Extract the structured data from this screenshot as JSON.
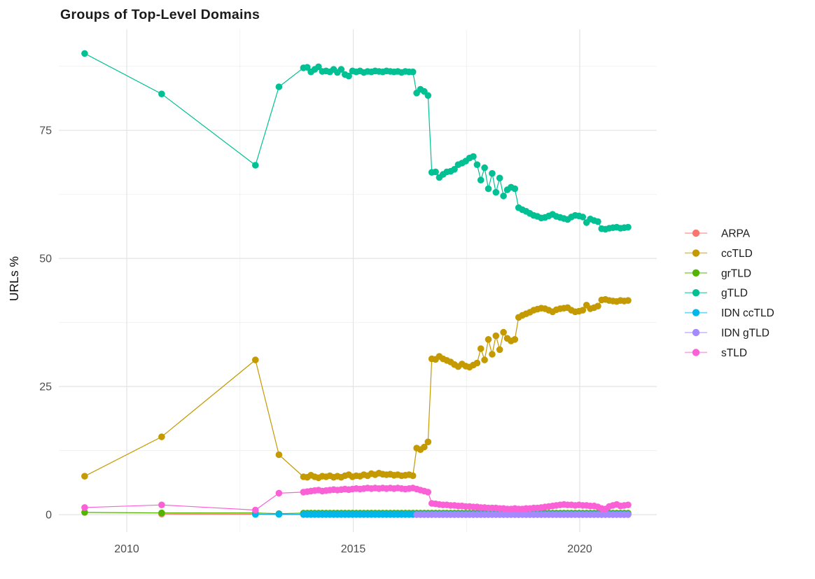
{
  "chart_data": {
    "type": "scatter",
    "title": "Groups of Top-Level Domains",
    "xlabel": "",
    "ylabel": "URLs %",
    "grid": true,
    "legend_position": "right",
    "x_range": [
      2008.5,
      2021.7
    ],
    "y_range": [
      -3.4,
      94.7
    ],
    "x_ticks": [
      2010,
      2015,
      2020
    ],
    "x_minor_ticks": [
      2012.5,
      2017.5
    ],
    "y_ticks": [
      0,
      25,
      50,
      75
    ],
    "y_minor_ticks": [
      12.5,
      37.5,
      62.5,
      87.5
    ],
    "colors": {
      "grid_major": "#e3e3e3",
      "grid_minor": "#f0f0f0",
      "tick_label": "#4d4d4d",
      "title": "#1a1a1a",
      "axis_title": "#0d0d0d",
      "legend_label": "#1a1a1a"
    },
    "series": [
      {
        "name": "ARPA",
        "color": "#F8766D",
        "early": [
          [
            2010.77,
            0.12
          ],
          [
            2012.84,
            0.1
          ]
        ],
        "flat": {
          "x_start": 2013.9,
          "x_step": 0.08333,
          "count": 87,
          "value": 0.03
        }
      },
      {
        "name": "ccTLD",
        "color": "#C49A00",
        "early": [
          [
            2009.07,
            7.5
          ],
          [
            2010.77,
            15.2
          ],
          [
            2012.84,
            30.2
          ],
          [
            2013.36,
            11.7
          ]
        ],
        "monthly": {
          "x_start": 2013.9,
          "x_step": 0.08333,
          "values": [
            7.4,
            7.3,
            7.7,
            7.4,
            7.2,
            7.5,
            7.4,
            7.6,
            7.3,
            7.5,
            7.3,
            7.6,
            7.8,
            7.4,
            7.6,
            7.5,
            7.8,
            7.6,
            8.0,
            7.8,
            8.1,
            7.9,
            7.8,
            7.9,
            7.7,
            7.8,
            7.6,
            7.7,
            7.8,
            7.6,
            13.0,
            12.7,
            13.2,
            14.2,
            30.4,
            30.3,
            30.9,
            30.4,
            30.1,
            29.8,
            29.3,
            28.9,
            29.4,
            29.0,
            28.8,
            29.2,
            29.6,
            32.4,
            30.2,
            34.2,
            31.3,
            34.9,
            32.2,
            35.6,
            34.4,
            33.9,
            34.2,
            38.5,
            38.9,
            39.2,
            39.5,
            39.9,
            40.1,
            40.3,
            40.2,
            39.9,
            39.6,
            40.0,
            40.2,
            40.3,
            40.4,
            39.9,
            39.6,
            39.7,
            39.9,
            40.9,
            40.2,
            40.4,
            40.7,
            41.9,
            42.0,
            41.8,
            41.7,
            41.6,
            41.8,
            41.7,
            41.8
          ]
        }
      },
      {
        "name": "grTLD",
        "color": "#53B400",
        "early": [
          [
            2009.07,
            0.45
          ],
          [
            2010.77,
            0.35
          ],
          [
            2012.84,
            0.35
          ],
          [
            2013.36,
            0.2
          ]
        ],
        "flat": {
          "x_start": 2013.9,
          "x_step": 0.08333,
          "count": 87,
          "value": 0.3
        }
      },
      {
        "name": "gTLD",
        "color": "#00C094",
        "early": [
          [
            2009.07,
            90.0
          ],
          [
            2010.77,
            82.1
          ],
          [
            2012.84,
            68.2
          ],
          [
            2013.36,
            83.5
          ]
        ],
        "monthly": {
          "x_start": 2013.9,
          "x_step": 0.08333,
          "values": [
            87.2,
            87.3,
            86.4,
            86.9,
            87.4,
            86.5,
            86.6,
            86.4,
            86.9,
            86.3,
            86.9,
            85.9,
            85.6,
            86.6,
            86.4,
            86.6,
            86.3,
            86.5,
            86.4,
            86.6,
            86.5,
            86.4,
            86.6,
            86.5,
            86.4,
            86.5,
            86.3,
            86.5,
            86.4,
            86.4,
            82.3,
            83.0,
            82.6,
            81.8,
            66.8,
            66.9,
            65.8,
            66.4,
            66.9,
            67.0,
            67.4,
            68.3,
            68.6,
            69.0,
            69.6,
            69.9,
            68.3,
            65.3,
            67.7,
            63.6,
            66.6,
            62.9,
            65.7,
            62.2,
            63.4,
            63.9,
            63.6,
            59.9,
            59.5,
            59.2,
            58.8,
            58.4,
            58.2,
            57.9,
            58.0,
            58.3,
            58.6,
            58.2,
            58.0,
            57.8,
            57.6,
            58.1,
            58.4,
            58.3,
            58.1,
            57.0,
            57.7,
            57.4,
            57.2,
            55.8,
            55.7,
            55.9,
            56.0,
            56.1,
            55.9,
            56.0,
            56.1
          ]
        }
      },
      {
        "name": "IDN ccTLD",
        "color": "#00B6EB",
        "early": [
          [
            2012.84,
            0.06
          ],
          [
            2013.36,
            0.05
          ]
        ],
        "flat": {
          "x_start": 2013.9,
          "x_step": 0.08333,
          "count": 87,
          "value": 0.05
        }
      },
      {
        "name": "IDN gTLD",
        "color": "#A58AFF",
        "flat": {
          "x_start": 2016.4,
          "x_step": 0.08333,
          "count": 57,
          "value": 0.02
        }
      },
      {
        "name": "sTLD",
        "color": "#FB61D7",
        "early": [
          [
            2009.07,
            1.4
          ],
          [
            2010.77,
            1.9
          ],
          [
            2012.84,
            0.9
          ],
          [
            2013.36,
            4.2
          ]
        ],
        "monthly": {
          "x_start": 2013.9,
          "x_step": 0.08333,
          "values": [
            4.4,
            4.5,
            4.6,
            4.7,
            4.8,
            4.6,
            4.7,
            4.8,
            4.9,
            4.8,
            4.9,
            5.0,
            4.9,
            5.0,
            5.1,
            5.0,
            5.1,
            5.2,
            5.1,
            5.2,
            5.1,
            5.2,
            5.1,
            5.2,
            5.1,
            5.2,
            5.1,
            5.0,
            5.1,
            5.2,
            5.0,
            4.8,
            4.6,
            4.4,
            2.2,
            2.1,
            2.0,
            1.9,
            1.9,
            1.8,
            1.8,
            1.7,
            1.7,
            1.6,
            1.6,
            1.5,
            1.5,
            1.4,
            1.4,
            1.3,
            1.3,
            1.3,
            1.2,
            1.2,
            1.1,
            1.1,
            1.2,
            1.1,
            1.1,
            1.2,
            1.2,
            1.3,
            1.3,
            1.4,
            1.5,
            1.6,
            1.7,
            1.8,
            1.9,
            2.0,
            1.9,
            1.9,
            1.8,
            1.9,
            1.8,
            1.8,
            1.7,
            1.7,
            1.5,
            1.2,
            1.1,
            1.6,
            1.8,
            2.0,
            1.7,
            1.8,
            1.9
          ]
        }
      }
    ],
    "legend_items": [
      "ARPA",
      "ccTLD",
      "grTLD",
      "gTLD",
      "IDN ccTLD",
      "IDN gTLD",
      "sTLD"
    ]
  }
}
